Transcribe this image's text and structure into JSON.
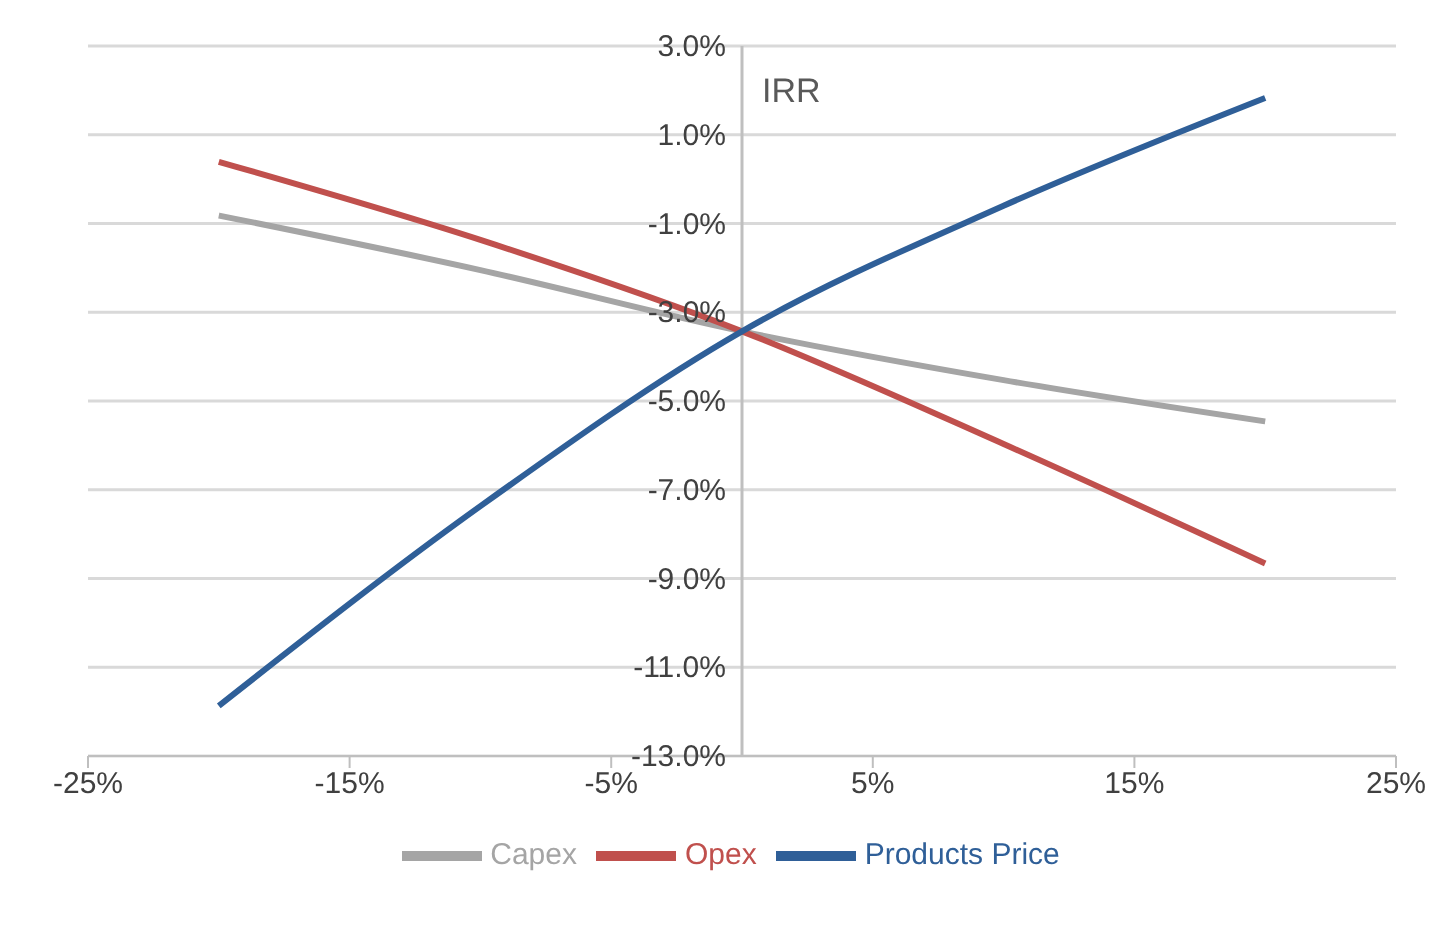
{
  "chart_data": {
    "type": "line",
    "ylabel": "IRR",
    "x": [
      -20,
      -10,
      0,
      10,
      20
    ],
    "series": [
      {
        "name": "Capex",
        "color": "#a5a5a5",
        "values": [
          -0.82,
          -2.05,
          -3.43,
          -4.53,
          -5.46
        ]
      },
      {
        "name": "Opex",
        "color": "#c0504d",
        "values": [
          0.39,
          -1.37,
          -3.43,
          -5.97,
          -8.66
        ]
      },
      {
        "name": "Products Price",
        "color": "#2f5f98",
        "values": [
          -11.87,
          -7.37,
          -3.43,
          -0.6,
          1.83
        ]
      }
    ],
    "xlim": [
      -25,
      25
    ],
    "xticks": [
      {
        "value": -25,
        "label": "-25%"
      },
      {
        "value": -15,
        "label": "-15%"
      },
      {
        "value": -5,
        "label": "-5%"
      },
      {
        "value": 5,
        "label": "5%"
      },
      {
        "value": 15,
        "label": "15%"
      },
      {
        "value": 25,
        "label": "25%"
      }
    ],
    "ylim": [
      -13,
      3
    ],
    "yticks": [
      {
        "value": -13,
        "label": "-13.0%"
      },
      {
        "value": -11,
        "label": "-11.0%"
      },
      {
        "value": -9,
        "label": "-9.0%"
      },
      {
        "value": -7,
        "label": "-7.0%"
      },
      {
        "value": -5,
        "label": "-5.0%"
      },
      {
        "value": -3,
        "label": "-3.0%"
      },
      {
        "value": -1,
        "label": "-1.0%"
      },
      {
        "value": 1,
        "label": "1.0%"
      },
      {
        "value": 3,
        "label": "3.0%"
      }
    ],
    "grid": "y",
    "legend": "bottom",
    "marker": "none",
    "line_style": "solid"
  }
}
